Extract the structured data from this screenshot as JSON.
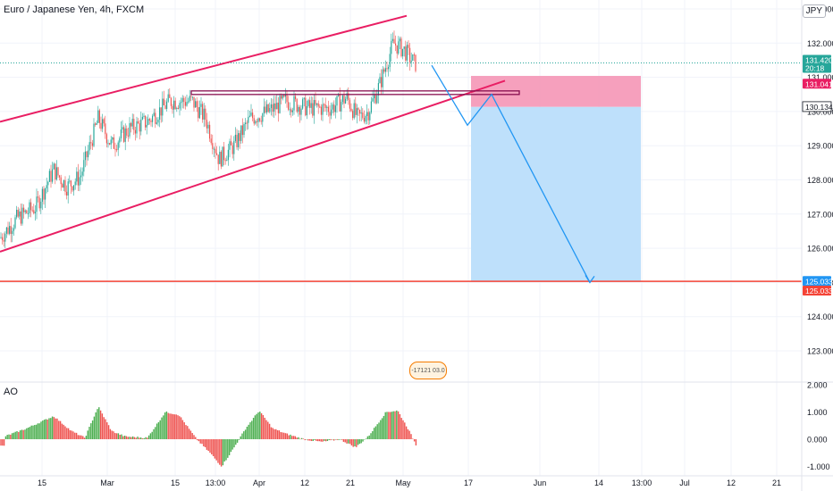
{
  "header": {
    "title": "Euro / Japanese Yen, 4h, FXCM",
    "currency": "JPY"
  },
  "price_tags": {
    "current": "131.420",
    "countdown": "20:18",
    "stop": "131.041",
    "entry": "130.134",
    "target_blue": "125.033",
    "target_red": "125.033"
  },
  "indicator": {
    "label": "AO"
  },
  "badge": {
    "text": "-17121 03.0"
  },
  "colors": {
    "bull": "#26a69a",
    "bear": "#ef5350",
    "ao_up": "#4caf50",
    "ao_down": "#ef5350",
    "channel": "#e91e63",
    "target_line": "#f44336",
    "stop_zone": "#f48fb1",
    "target_zone": "#bbdefb",
    "path": "#2196f3"
  },
  "chart_data": [
    {
      "type": "candlestick",
      "y_axis_ticks": [
        "133.000",
        "132.000",
        "131.000",
        "130.000",
        "129.000",
        "128.000",
        "127.000",
        "126.000",
        "125.000",
        "124.000",
        "123.000"
      ],
      "x_axis_ticks": [
        "15",
        "Mar",
        "15",
        "13:00",
        "Apr",
        "12",
        "21",
        "May",
        "17",
        "Jun",
        "14",
        "13:00",
        "Jul",
        "12",
        "21"
      ],
      "ylim": [
        122.5,
        133.3
      ],
      "anchor_points": [
        {
          "x": 0,
          "close": 126.3
        },
        {
          "x": 20,
          "close": 126.9
        },
        {
          "x": 40,
          "close": 127.2
        },
        {
          "x": 60,
          "close": 128.3
        },
        {
          "x": 75,
          "close": 127.8
        },
        {
          "x": 90,
          "close": 128.1
        },
        {
          "x": 110,
          "close": 129.8
        },
        {
          "x": 125,
          "close": 129.0
        },
        {
          "x": 145,
          "close": 129.5
        },
        {
          "x": 165,
          "close": 129.7
        },
        {
          "x": 190,
          "close": 130.3
        },
        {
          "x": 215,
          "close": 130.3
        },
        {
          "x": 230,
          "close": 129.8
        },
        {
          "x": 245,
          "close": 128.6
        },
        {
          "x": 262,
          "close": 129.0
        },
        {
          "x": 280,
          "close": 129.8
        },
        {
          "x": 300,
          "close": 130.0
        },
        {
          "x": 320,
          "close": 130.3
        },
        {
          "x": 345,
          "close": 130.1
        },
        {
          "x": 370,
          "close": 130.1
        },
        {
          "x": 388,
          "close": 130.4
        },
        {
          "x": 400,
          "close": 129.8
        },
        {
          "x": 412,
          "close": 130.0
        },
        {
          "x": 425,
          "close": 130.8
        },
        {
          "x": 440,
          "close": 132.0
        },
        {
          "x": 452,
          "close": 131.8
        },
        {
          "x": 464,
          "close": 131.4
        }
      ],
      "levels": {
        "current": 131.42,
        "stop": 131.041,
        "entry": 130.134,
        "target": 125.033,
        "resistance": 130.55
      },
      "channel": {
        "upper": [
          [
            0,
            129.7
          ],
          [
            455,
            132.8
          ]
        ],
        "lower": [
          [
            0,
            125.9
          ],
          [
            565,
            130.9
          ]
        ]
      },
      "position": {
        "type": "short",
        "x_start": 527,
        "x_end": 717,
        "stop": 131.041,
        "entry": 130.134,
        "target": 125.033
      },
      "projection_path": [
        [
          483,
          131.35
        ],
        [
          523,
          129.6
        ],
        [
          550,
          130.5
        ],
        [
          660,
          125.0
        ]
      ]
    },
    {
      "type": "bar",
      "name": "AO",
      "y_axis_ticks": [
        "2.000",
        "1.000",
        "0.000",
        "-1.000"
      ],
      "ylim": [
        -1.3,
        2.0
      ],
      "anchor_points": [
        {
          "x": 5,
          "v": 0.1
        },
        {
          "x": 30,
          "v": 0.4
        },
        {
          "x": 60,
          "v": 0.85
        },
        {
          "x": 80,
          "v": 0.3
        },
        {
          "x": 95,
          "v": 0.05
        },
        {
          "x": 110,
          "v": 1.2
        },
        {
          "x": 125,
          "v": 0.3
        },
        {
          "x": 140,
          "v": 0.1
        },
        {
          "x": 165,
          "v": 0.05
        },
        {
          "x": 185,
          "v": 1.0
        },
        {
          "x": 200,
          "v": 0.9
        },
        {
          "x": 220,
          "v": 0.0
        },
        {
          "x": 235,
          "v": -0.5
        },
        {
          "x": 248,
          "v": -1.0
        },
        {
          "x": 262,
          "v": -0.3
        },
        {
          "x": 275,
          "v": 0.4
        },
        {
          "x": 290,
          "v": 1.05
        },
        {
          "x": 305,
          "v": 0.4
        },
        {
          "x": 320,
          "v": 0.2
        },
        {
          "x": 340,
          "v": 0.0
        },
        {
          "x": 360,
          "v": -0.1
        },
        {
          "x": 380,
          "v": 0.0
        },
        {
          "x": 398,
          "v": -0.3
        },
        {
          "x": 412,
          "v": 0.1
        },
        {
          "x": 432,
          "v": 1.0
        },
        {
          "x": 445,
          "v": 1.05
        },
        {
          "x": 458,
          "v": 0.3
        },
        {
          "x": 466,
          "v": -0.25
        }
      ]
    }
  ]
}
